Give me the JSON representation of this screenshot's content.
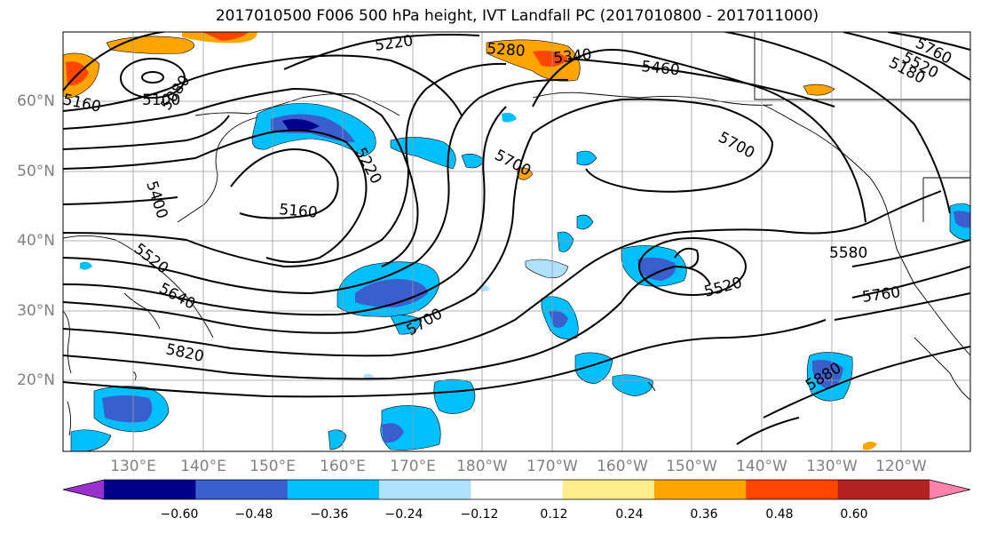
{
  "title": "2017010500 F006 500 hPa height, IVT Landfall PC (2017010800 - 2017011000)",
  "lat_labels": [
    "60°N",
    "50°N",
    "40°N",
    "30°N",
    "20°N"
  ],
  "lon_labels": [
    "130°E",
    "140°E",
    "150°E",
    "160°E",
    "170°E",
    "180°W",
    "170°W",
    "160°W",
    "150°W",
    "140°W",
    "130°W",
    "120°W"
  ],
  "contour_labels": [
    "5160",
    "5100",
    "5080",
    "5220",
    "5280",
    "5340",
    "5460",
    "5760",
    "5520",
    "5180",
    "5700",
    "5220",
    "5400",
    "5160",
    "5520",
    "5640",
    "5700",
    "5820",
    "5580",
    "5520",
    "5760",
    "5880",
    "5700"
  ],
  "colorbar": {
    "ticks": [
      "−0.60",
      "−0.48",
      "−0.36",
      "−0.24",
      "−0.12",
      "0.12",
      "0.24",
      "0.36",
      "0.48",
      "0.60"
    ],
    "colors": [
      "#9932cc",
      "#00008b",
      "#3a5fcd",
      "#00bfff",
      "#b0e2ff",
      "#ffffff",
      "#ffec8b",
      "#ffa500",
      "#ff4500",
      "#b22222",
      "#ff82ab"
    ]
  }
}
